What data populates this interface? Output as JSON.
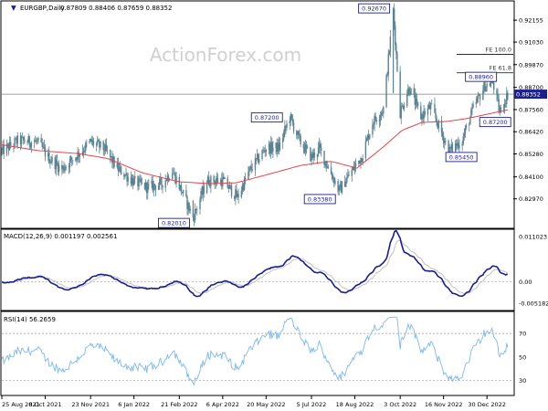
{
  "header": {
    "symbol_label": "EURGBP,Daily",
    "ohlc": "0.87809 0.88406 0.87659 0.88352",
    "watermark": "ActionForex.com"
  },
  "colors": {
    "candle": "#5b8291",
    "ma": "#e2464a",
    "macd": "#1b1f8c",
    "signal": "#c4c0c0",
    "rsi": "#7fb8e6",
    "hline": "#7f7f7f",
    "grid_dash": "#9a9a9a",
    "label_box": "#1b1f8c",
    "price_box": "#1b1f8c",
    "level_line": "#0b3d20"
  },
  "chart_data": [
    {
      "type": "candlestick",
      "panel": "price",
      "title": "EURGBP,Daily",
      "ylim": [
        0.815,
        0.931
      ],
      "y_ticks": [
        "0.92155",
        "0.91030",
        "0.89870",
        "0.88700",
        "0.87560",
        "0.86420",
        "0.85280",
        "0.84100",
        "0.82970"
      ],
      "current_price": "0.88352",
      "current_price_value": 0.88352,
      "price_path": [
        [
          "2021-08-25",
          0.854
        ],
        [
          "2021-09-10",
          0.8595
        ],
        [
          "2021-09-30",
          0.859
        ],
        [
          "2021-10-12",
          0.8505
        ],
        [
          "2021-10-25",
          0.845
        ],
        [
          "2021-11-10",
          0.8525
        ],
        [
          "2021-11-23",
          0.859
        ],
        [
          "2021-12-07",
          0.8555
        ],
        [
          "2021-12-20",
          0.8455
        ],
        [
          "2022-01-06",
          0.8385
        ],
        [
          "2022-01-20",
          0.8355
        ],
        [
          "2022-02-03",
          0.8375
        ],
        [
          "2022-02-14",
          0.844
        ],
        [
          "2022-02-24",
          0.833
        ],
        [
          "2022-03-07",
          0.8201
        ],
        [
          "2022-03-21",
          0.839
        ],
        [
          "2022-04-06",
          0.839
        ],
        [
          "2022-04-21",
          0.8305
        ],
        [
          "2022-05-03",
          0.844
        ],
        [
          "2022-05-20",
          0.856
        ],
        [
          "2022-06-02",
          0.856
        ],
        [
          "2022-06-13",
          0.872
        ],
        [
          "2022-06-23",
          0.8595
        ],
        [
          "2022-07-05",
          0.851
        ],
        [
          "2022-07-13",
          0.8555
        ],
        [
          "2022-07-28",
          0.8395
        ],
        [
          "2022-08-02",
          0.8338
        ],
        [
          "2022-08-15",
          0.844
        ],
        [
          "2022-08-25",
          0.8515
        ],
        [
          "2022-09-05",
          0.869
        ],
        [
          "2022-09-16",
          0.876
        ],
        [
          "2022-09-26",
          0.9267
        ],
        [
          "2022-10-03",
          0.874
        ],
        [
          "2022-10-12",
          0.887
        ],
        [
          "2022-10-24",
          0.872
        ],
        [
          "2022-11-03",
          0.877
        ],
        [
          "2022-11-16",
          0.861
        ],
        [
          "2022-11-22",
          0.8545
        ],
        [
          "2022-12-05",
          0.86
        ],
        [
          "2022-12-16",
          0.876
        ],
        [
          "2022-12-28",
          0.888
        ],
        [
          "2023-01-05",
          0.8896
        ],
        [
          "2023-01-12",
          0.874
        ],
        [
          "2023-01-20",
          0.8835
        ]
      ],
      "ma_path": [
        [
          "2021-08-25",
          0.8575
        ],
        [
          "2021-10-01",
          0.8545
        ],
        [
          "2021-11-10",
          0.853
        ],
        [
          "2021-12-10",
          0.8505
        ],
        [
          "2022-01-15",
          0.843
        ],
        [
          "2022-02-20",
          0.8385
        ],
        [
          "2022-03-25",
          0.8375
        ],
        [
          "2022-04-20",
          0.838
        ],
        [
          "2022-05-20",
          0.842
        ],
        [
          "2022-06-25",
          0.847
        ],
        [
          "2022-07-25",
          0.849
        ],
        [
          "2022-08-20",
          0.8455
        ],
        [
          "2022-09-15",
          0.856
        ],
        [
          "2022-10-05",
          0.865
        ],
        [
          "2022-10-25",
          0.869
        ],
        [
          "2022-11-20",
          0.8695
        ],
        [
          "2022-12-10",
          0.871
        ],
        [
          "2023-01-20",
          0.8755
        ]
      ],
      "annotations": [
        {
          "text": "0.92670",
          "date": "2022-09-26",
          "value": 0.9267
        },
        {
          "text": "0.88960",
          "date": "2023-01-05",
          "value": 0.8896
        },
        {
          "text": "0.87200",
          "date": "2022-06-13",
          "value": 0.872
        },
        {
          "text": "0.87200",
          "date": "2023-01-12",
          "value": 0.872
        },
        {
          "text": "0.85450",
          "date": "2022-11-22",
          "value": 0.8545
        },
        {
          "text": "0.83380",
          "date": "2022-08-02",
          "value": 0.8338
        },
        {
          "text": "0.82010",
          "date": "2022-03-07",
          "value": 0.8201
        }
      ],
      "levels": [
        {
          "text": "FE 100.0",
          "value": 0.904
        },
        {
          "text": "FE 61.8",
          "value": 0.8945
        }
      ]
    },
    {
      "type": "line",
      "panel": "macd",
      "title": "MACD(12,26,9) 0.001197 0.002561",
      "ylim": [
        -0.00545,
        0.0112
      ],
      "y_ticks": [
        "0.011023",
        "0.00",
        "-0.005182"
      ],
      "zero_line": 0
    },
    {
      "type": "line",
      "panel": "rsi",
      "title": "RSI(14) 56.2659",
      "ylim": [
        18,
        88
      ],
      "y_ticks": [
        "70",
        "50",
        "30"
      ],
      "levels": [
        70,
        30
      ]
    }
  ],
  "x_axis": {
    "labels": [
      "25 Aug 2021",
      "8 Oct 2021",
      "23 Nov 2021",
      "6 Jan 2022",
      "21 Feb 2022",
      "6 Apr 2022",
      "20 May 2022",
      "5 Jul 2022",
      "18 Aug 2022",
      "3 Oct 2022",
      "16 Nov 2022",
      "30 Dec 2022"
    ]
  }
}
